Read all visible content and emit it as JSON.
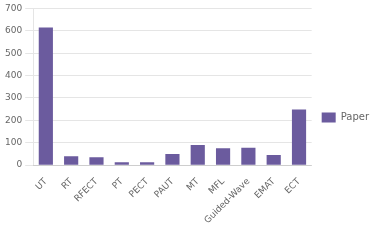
{
  "chart_data": {
    "type": "bar",
    "categories": [
      "UT",
      "RT",
      "RFECT",
      "PT",
      "PECT",
      "PAUT",
      "MT",
      "MFL",
      "Guided-Wave",
      "EMAT",
      "ECT"
    ],
    "series": [
      {
        "name": "Paper",
        "color": "#6b5b9e",
        "values": [
          615,
          40,
          35,
          13,
          13,
          50,
          90,
          75,
          78,
          45,
          248
        ]
      }
    ],
    "ylim": [
      0,
      700
    ],
    "yticks": [
      0,
      100,
      200,
      300,
      400,
      500,
      600,
      700
    ],
    "grid": true,
    "legend": "right"
  }
}
